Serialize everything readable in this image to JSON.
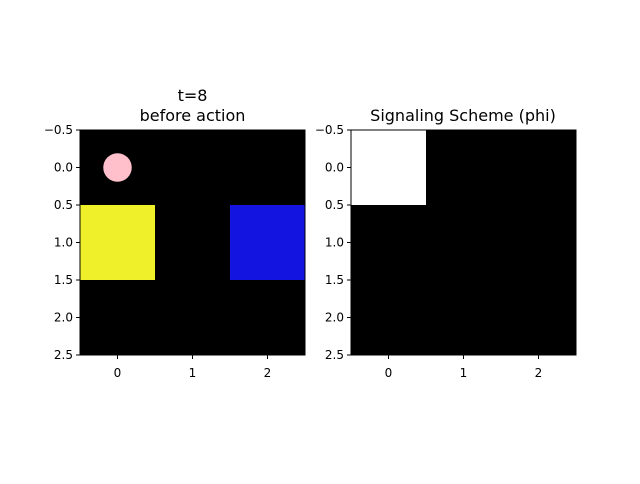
{
  "panels": [
    {
      "title_line1": "t=8",
      "title_line2": "before action",
      "grid": {
        "rows": 3,
        "cols": 3,
        "background": "#000000",
        "cells": [
          {
            "row": 1,
            "col": 0,
            "color": "#f0f02a"
          },
          {
            "row": 1,
            "col": 2,
            "color": "#1414e0"
          }
        ]
      },
      "agent": {
        "row": 0,
        "col": 0,
        "color": "#ffc0cb"
      },
      "x_ticks": [
        "0",
        "1",
        "2"
      ],
      "y_ticks": [
        "−0.5",
        "0.0",
        "0.5",
        "1.0",
        "1.5",
        "2.0",
        "2.5"
      ]
    },
    {
      "title": "Signaling Scheme (phi)",
      "grid": {
        "rows": 3,
        "cols": 3,
        "background": "#000000",
        "cells": [
          {
            "row": 0,
            "col": 0,
            "color": "#ffffff"
          }
        ]
      },
      "x_ticks": [
        "0",
        "1",
        "2"
      ],
      "y_ticks": [
        "−0.5",
        "0.0",
        "0.5",
        "1.0",
        "1.5",
        "2.0",
        "2.5"
      ]
    }
  ]
}
